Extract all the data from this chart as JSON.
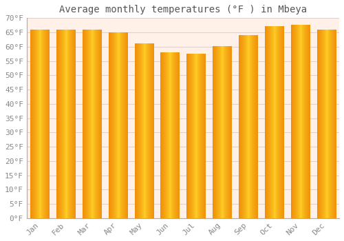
{
  "title": "Average monthly temperatures (°F ) in Mbeya",
  "months": [
    "Jan",
    "Feb",
    "Mar",
    "Apr",
    "May",
    "Jun",
    "Jul",
    "Aug",
    "Sep",
    "Oct",
    "Nov",
    "Dec"
  ],
  "values": [
    66,
    66,
    66,
    65,
    61,
    58,
    57.5,
    60,
    64,
    67,
    67.5,
    66
  ],
  "bar_color_center": "#FFD040",
  "bar_color_edge": "#F0900A",
  "background_color": "#FFFFFF",
  "plot_bg_color": "#FFF0E8",
  "grid_color": "#E0D0D0",
  "ylim": [
    0,
    70
  ],
  "yticks": [
    0,
    5,
    10,
    15,
    20,
    25,
    30,
    35,
    40,
    45,
    50,
    55,
    60,
    65,
    70
  ],
  "ylabel_suffix": "°F",
  "title_fontsize": 10,
  "tick_fontsize": 8,
  "font_color": "#888888",
  "title_color": "#555555"
}
